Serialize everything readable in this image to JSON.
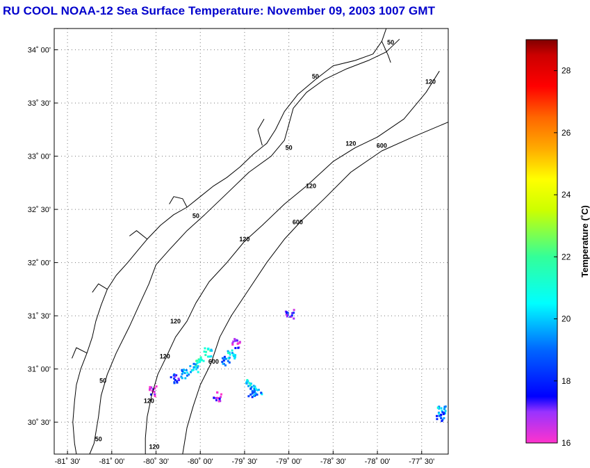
{
  "title": "RU COOL  NOAA-12  Sea Surface Temperature:  November 09, 2003 1007 GMT",
  "map": {
    "lon_range": [
      -81.65,
      -77.2
    ],
    "lat_range": [
      30.2,
      34.2
    ],
    "lat_ticks": [
      {
        "value": 34.0,
        "label": "34˚ 00'"
      },
      {
        "value": 33.5,
        "label": "33˚ 30'"
      },
      {
        "value": 33.0,
        "label": "33˚ 00'"
      },
      {
        "value": 32.5,
        "label": "32˚ 30'"
      },
      {
        "value": 32.0,
        "label": "32˚ 00'"
      },
      {
        "value": 31.5,
        "label": "31˚ 30'"
      },
      {
        "value": 31.0,
        "label": "31˚ 00'"
      },
      {
        "value": 30.5,
        "label": "30˚ 30'"
      }
    ],
    "lon_ticks": [
      {
        "value": -81.5,
        "label": "-81˚ 30'"
      },
      {
        "value": -81.0,
        "label": "-81˚ 00'"
      },
      {
        "value": -80.5,
        "label": "-80˚ 30'"
      },
      {
        "value": -80.0,
        "label": "-80˚ 00'"
      },
      {
        "value": -79.5,
        "label": "-79˚ 30'"
      },
      {
        "value": -79.0,
        "label": "-79˚ 00'"
      },
      {
        "value": -78.5,
        "label": "-78˚ 30'"
      },
      {
        "value": -78.0,
        "label": "-78˚ 00'"
      },
      {
        "value": -77.5,
        "label": "-77˚ 30'"
      }
    ],
    "grid": true,
    "contour_labels": [
      {
        "text": "50",
        "lon": -77.85,
        "lat": 34.05
      },
      {
        "text": "50",
        "lon": -78.7,
        "lat": 33.73
      },
      {
        "text": "120",
        "lon": -77.4,
        "lat": 33.68
      },
      {
        "text": "50",
        "lon": -79.0,
        "lat": 33.06
      },
      {
        "text": "120",
        "lon": -78.3,
        "lat": 33.1
      },
      {
        "text": "600",
        "lon": -77.95,
        "lat": 33.08
      },
      {
        "text": "120",
        "lon": -78.75,
        "lat": 32.7
      },
      {
        "text": "50",
        "lon": -80.05,
        "lat": 32.42
      },
      {
        "text": "600",
        "lon": -78.9,
        "lat": 32.36
      },
      {
        "text": "120",
        "lon": -79.5,
        "lat": 32.2
      },
      {
        "text": "120",
        "lon": -80.28,
        "lat": 31.43
      },
      {
        "text": "120",
        "lon": -80.4,
        "lat": 31.1
      },
      {
        "text": "600",
        "lon": -79.85,
        "lat": 31.05
      },
      {
        "text": "120",
        "lon": -80.58,
        "lat": 30.68
      },
      {
        "text": "50",
        "lon": -81.1,
        "lat": 30.87
      },
      {
        "text": "50",
        "lon": -81.15,
        "lat": 30.32
      },
      {
        "text": "120",
        "lon": -80.52,
        "lat": 30.25
      }
    ]
  },
  "sst_patches": [
    {
      "lon": -80.02,
      "lat": 31.08,
      "temp": 21.5
    },
    {
      "lon": -80.08,
      "lat": 31.02,
      "temp": 20.0
    },
    {
      "lon": -79.92,
      "lat": 31.16,
      "temp": 21.0
    },
    {
      "lon": -80.18,
      "lat": 30.96,
      "temp": 19.5
    },
    {
      "lon": -80.3,
      "lat": 30.92,
      "temp": 18.0
    },
    {
      "lon": -79.72,
      "lat": 31.08,
      "temp": 19.0
    },
    {
      "lon": -79.66,
      "lat": 31.15,
      "temp": 20.5
    },
    {
      "lon": -79.6,
      "lat": 31.25,
      "temp": 17.0
    },
    {
      "lon": -79.45,
      "lat": 30.86,
      "temp": 20.5
    },
    {
      "lon": -79.42,
      "lat": 30.78,
      "temp": 18.5
    },
    {
      "lon": -79.36,
      "lat": 30.8,
      "temp": 19.5
    },
    {
      "lon": -79.0,
      "lat": 31.52,
      "temp": 17.5
    },
    {
      "lon": -80.55,
      "lat": 30.8,
      "temp": 16.5
    },
    {
      "lon": -79.82,
      "lat": 30.75,
      "temp": 16.8
    },
    {
      "lon": -77.28,
      "lat": 30.62,
      "temp": 20.0
    },
    {
      "lon": -77.3,
      "lat": 30.56,
      "temp": 18.5
    }
  ],
  "colorbar": {
    "label": "Temperature (˚C)",
    "min": 16,
    "max": 29,
    "ticks": [
      {
        "value": 16,
        "label": "16"
      },
      {
        "value": 18,
        "label": "18"
      },
      {
        "value": 20,
        "label": "20"
      },
      {
        "value": 22,
        "label": "22"
      },
      {
        "value": 24,
        "label": "24"
      },
      {
        "value": 26,
        "label": "26"
      },
      {
        "value": 28,
        "label": "28"
      }
    ],
    "stops": [
      {
        "value": 16,
        "color": "#ff33cc"
      },
      {
        "value": 17,
        "color": "#9933ff"
      },
      {
        "value": 17.5,
        "color": "#0000ff"
      },
      {
        "value": 19,
        "color": "#0066ff"
      },
      {
        "value": 20.5,
        "color": "#00ffff"
      },
      {
        "value": 22,
        "color": "#33ff99"
      },
      {
        "value": 23.5,
        "color": "#ccff00"
      },
      {
        "value": 24.5,
        "color": "#ffff00"
      },
      {
        "value": 25.5,
        "color": "#ffaa00"
      },
      {
        "value": 26.5,
        "color": "#ff6600"
      },
      {
        "value": 27.5,
        "color": "#ff0000"
      },
      {
        "value": 28.5,
        "color": "#cc0000"
      },
      {
        "value": 29,
        "color": "#800000"
      }
    ]
  }
}
